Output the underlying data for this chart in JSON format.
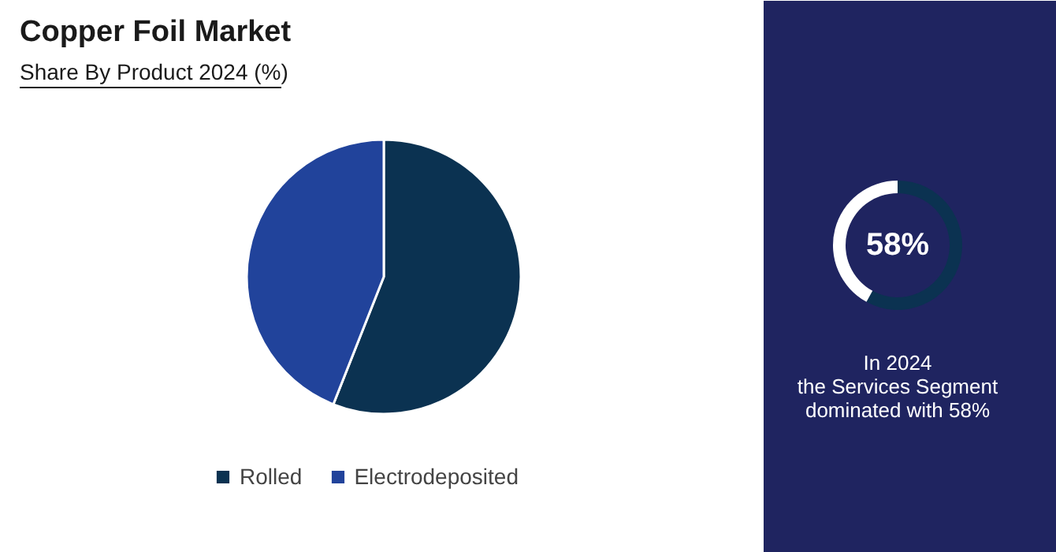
{
  "chart_data": [
    {
      "type": "pie",
      "title": "Copper Foil Market",
      "subtitle": "Share By Product 2024 (%)",
      "categories": [
        "Rolled",
        "Electrodeposited"
      ],
      "values": [
        56,
        44
      ],
      "colors": [
        "#0b3251",
        "#21439b"
      ],
      "legend": "bottom"
    },
    {
      "type": "donut",
      "categories": [
        null,
        null
      ],
      "values": [
        58,
        42
      ],
      "colors": [
        "#0b3251",
        "#ffffff"
      ],
      "annotations": [
        "58%",
        "In 2024\nthe Services Segment\ndominated with 58%"
      ]
    }
  ]
}
